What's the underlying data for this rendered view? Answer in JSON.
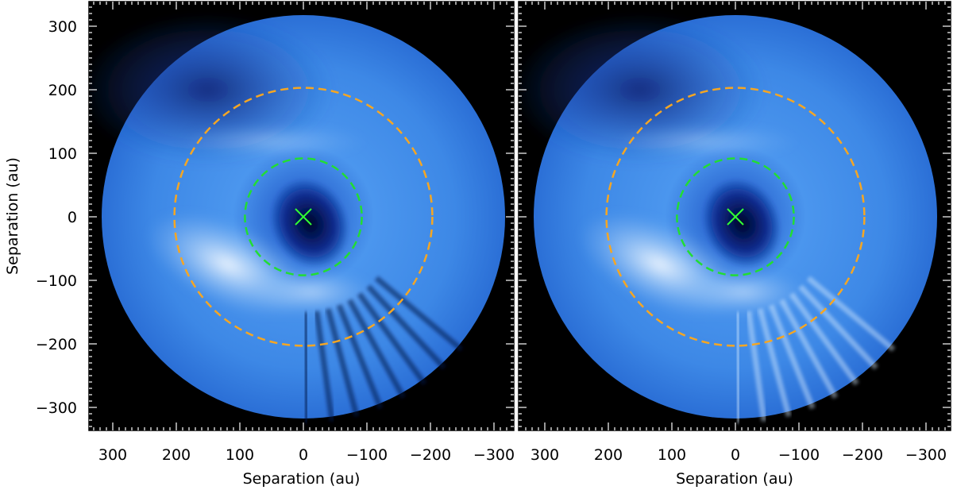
{
  "panels": [
    {
      "id": "left",
      "xlabel": "Separation (au)",
      "ylabel": "Separation (au)",
      "x_ticks": [
        300,
        200,
        100,
        0,
        -100,
        -200,
        -300
      ],
      "y_ticks": [
        300,
        200,
        100,
        0,
        -100,
        -200,
        -300
      ]
    },
    {
      "id": "right",
      "xlabel": "Separation (au)",
      "x_ticks": [
        300,
        200,
        100,
        0,
        -100,
        -200,
        -300
      ]
    }
  ],
  "axes": {
    "xlim": [
      340,
      -340
    ],
    "ylim": [
      -340,
      340
    ],
    "unit": "au"
  },
  "rings": [
    {
      "name": "inner-ring",
      "radius_au": 92,
      "color": "#22dd33"
    },
    {
      "name": "outer-ring",
      "radius_au": 203,
      "color": "#f5a623"
    }
  ],
  "star_marker": {
    "x_au": 0,
    "y_au": 0,
    "color": "#33ff33",
    "icon": "x-marker-icon"
  },
  "colors": {
    "background": "#000000",
    "disk_base": "#3b8ae8",
    "disk_bright": "#eef6ff",
    "disk_dark": "#0a1e6e"
  }
}
